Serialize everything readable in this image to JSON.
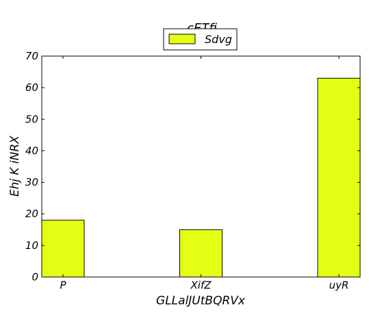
{
  "chart_data": {
    "type": "bar",
    "title": "cETfi",
    "xlabel": "GLLalJUtBQRVx",
    "ylabel": "Ehj K iNRX",
    "categories": [
      "P",
      "XifZ",
      "uyR"
    ],
    "series": [
      {
        "name": "Sdvg",
        "values": [
          18,
          15,
          63
        ],
        "color": "#e5ff14"
      }
    ],
    "ylim": [
      0,
      70
    ],
    "yticks": [
      0,
      10,
      20,
      30,
      40,
      50,
      60,
      70
    ],
    "grid": false,
    "legend_position": "top-center"
  }
}
